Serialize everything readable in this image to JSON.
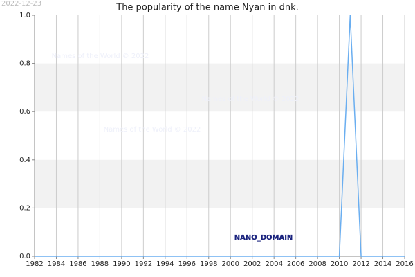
{
  "chart_data": {
    "type": "line",
    "title": "The popularity of the name Nyan in dnk.",
    "date_stamp": "2022-12-23",
    "watermarks": [
      "Names of the World © 2022",
      "Names of the World © 2022",
      "Names of the World © 2022"
    ],
    "annotation": "NANO_DOMAIN",
    "x": [
      1982,
      1983,
      1984,
      1985,
      1986,
      1987,
      1988,
      1989,
      1990,
      1991,
      1992,
      1993,
      1994,
      1995,
      1996,
      1997,
      1998,
      1999,
      2000,
      2001,
      2002,
      2003,
      2004,
      2005,
      2006,
      2007,
      2008,
      2009,
      2010,
      2011,
      2012,
      2013,
      2014,
      2015,
      2016
    ],
    "values": [
      0,
      0,
      0,
      0,
      0,
      0,
      0,
      0,
      0,
      0,
      0,
      0,
      0,
      0,
      0,
      0,
      0,
      0,
      0,
      0,
      0,
      0,
      0,
      0,
      0,
      0,
      0,
      0,
      0,
      1,
      0,
      0,
      0,
      0,
      0
    ],
    "color": "#6aaef0",
    "xlim": [
      1982,
      2016
    ],
    "xticks": [
      1982,
      1984,
      1986,
      1988,
      1990,
      1992,
      1994,
      1996,
      1998,
      2000,
      2002,
      2004,
      2006,
      2008,
      2010,
      2012,
      2014,
      2016
    ],
    "ylim": [
      0,
      1
    ],
    "yticks": [
      {
        "value": 0,
        "label": "0.0"
      },
      {
        "value": 0.2,
        "label": "0.2"
      },
      {
        "value": 0.4,
        "label": "0.4"
      },
      {
        "value": 0.6,
        "label": "0.6"
      },
      {
        "value": 0.8,
        "label": "0.8"
      },
      {
        "value": 1,
        "label": "1.0"
      }
    ],
    "grid": true,
    "bands": true
  }
}
